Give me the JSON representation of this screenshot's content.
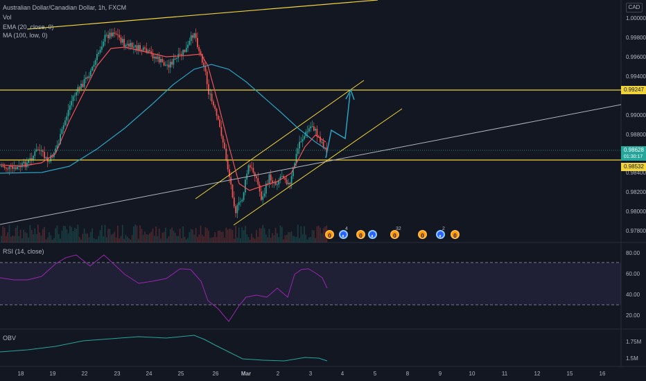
{
  "header": {
    "symbol_title": "Australian Dollar/Canadian Dollar, 1h, FXCM",
    "volume_label": "Vol",
    "ema_label": "EMA (20, close, 0)",
    "ma_label": "MA (100, low, 0)"
  },
  "currency_badge": "CAD",
  "price_axis": [
    "1.00000",
    "0.99800",
    "0.99600",
    "0.99400",
    "0.99000",
    "0.98800",
    "0.98400",
    "0.98200",
    "0.98000",
    "0.97800"
  ],
  "price_tags": {
    "resistance": "0.99247",
    "current": "0.98628",
    "countdown": "01:30:17",
    "support": "0.98532"
  },
  "rsi": {
    "label": "RSI (14, close)",
    "axis": [
      "80.00",
      "60.00",
      "40.00",
      "20.00"
    ],
    "overbought": 70,
    "oversold": 30
  },
  "obv": {
    "label": "OBV",
    "axis": [
      "1.75M",
      "1.5M"
    ]
  },
  "time_axis": [
    "18",
    "19",
    "22",
    "23",
    "24",
    "25",
    "26",
    "Mar",
    "2",
    "3",
    "4",
    "5",
    "8",
    "9",
    "10",
    "11",
    "12",
    "15",
    "16"
  ],
  "event_icons": [
    {
      "type": "earn",
      "glyph": "0",
      "badge": ""
    },
    {
      "type": "div",
      "glyph": "◐",
      "badge": "4"
    },
    {
      "type": "earn",
      "glyph": "0",
      "badge": ""
    },
    {
      "type": "div",
      "glyph": "◐",
      "badge": ""
    },
    {
      "type": "earn",
      "glyph": "0",
      "badge": "32"
    },
    {
      "type": "earn",
      "glyph": "0",
      "badge": ""
    },
    {
      "type": "div",
      "glyph": "◐",
      "badge": "2"
    },
    {
      "type": "earn",
      "glyph": "0",
      "badge": ""
    }
  ],
  "colors": {
    "background": "#131722",
    "up_candle": "#26a69a",
    "down_candle": "#ef5350",
    "ema": "#f0535a",
    "ma": "#2aa3c2",
    "horizontal_levels": "#f0d43a",
    "trendline": "#b2b5be",
    "projection_arrow": "#2aa3c2",
    "rsi_line": "#9c27b0",
    "obv_line": "#26a69a"
  },
  "chart_data": {
    "type": "candlestick",
    "symbol": "AUDCAD",
    "timeframe": "1h",
    "ylim": [
      0.977,
      1.001
    ],
    "current_price": 0.98628,
    "levels": [
      0.99247,
      0.98532
    ],
    "indicators": [
      "EMA (20, close, 0)",
      "MA (100, low, 0)",
      "RSI (14, close)",
      "OBV"
    ]
  }
}
